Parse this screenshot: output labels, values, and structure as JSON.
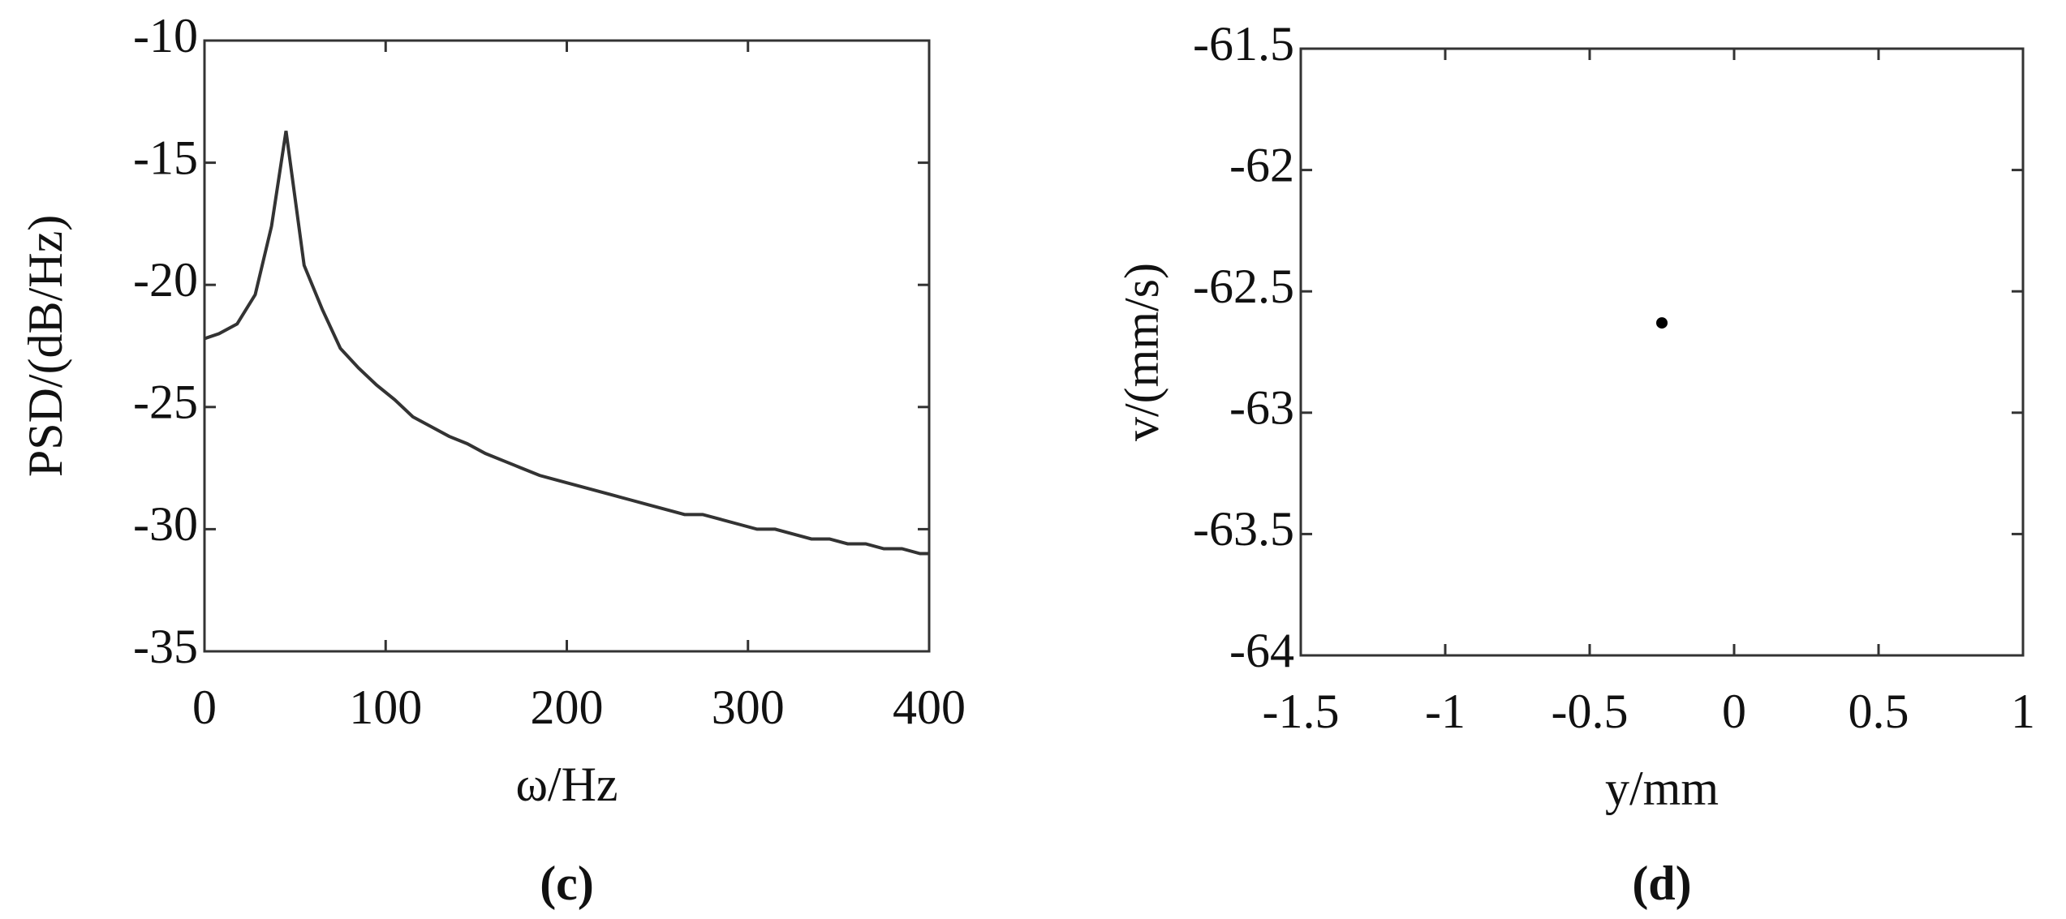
{
  "chart_data": [
    {
      "type": "line",
      "caption": "(c)",
      "xlabel": "ω/Hz",
      "ylabel": "PSD/(dB/Hz)",
      "color": "#333333",
      "xlim": [
        0,
        400
      ],
      "xticks": [
        0,
        100,
        200,
        300,
        400
      ],
      "ylim": [
        -35,
        -10
      ],
      "yticks": [
        -35,
        -30,
        -25,
        -20,
        -15,
        -10
      ],
      "x": [
        0,
        8,
        18,
        28,
        37,
        45,
        55,
        65,
        75,
        85,
        95,
        105,
        115,
        125,
        135,
        145,
        155,
        165,
        175,
        185,
        195,
        205,
        215,
        225,
        235,
        245,
        255,
        265,
        275,
        285,
        295,
        305,
        315,
        325,
        335,
        345,
        355,
        365,
        375,
        385,
        395,
        400
      ],
      "values": [
        -22.2,
        -22.0,
        -21.6,
        -20.4,
        -17.6,
        -13.7,
        -19.2,
        -21.0,
        -22.6,
        -23.4,
        -24.1,
        -24.7,
        -25.4,
        -25.8,
        -26.2,
        -26.5,
        -26.9,
        -27.2,
        -27.5,
        -27.8,
        -28.0,
        -28.2,
        -28.4,
        -28.6,
        -28.8,
        -29.0,
        -29.2,
        -29.4,
        -29.4,
        -29.6,
        -29.8,
        -30.0,
        -30.0,
        -30.2,
        -30.4,
        -30.4,
        -30.6,
        -30.6,
        -30.8,
        -30.8,
        -31.0,
        -31.0
      ]
    },
    {
      "type": "scatter",
      "caption": "(d)",
      "xlabel": "y/mm",
      "ylabel": "v/(mm/s)",
      "color": "#000000",
      "xlim": [
        -1.5,
        1
      ],
      "xticks": [
        -1.5,
        -1,
        -0.5,
        0,
        0.5,
        1
      ],
      "ylim": [
        -64,
        -61.5
      ],
      "yticks": [
        -64,
        -63.5,
        -63,
        -62.5,
        -62,
        -61.5
      ],
      "x": [
        -0.25
      ],
      "values": [
        -62.63
      ]
    }
  ]
}
